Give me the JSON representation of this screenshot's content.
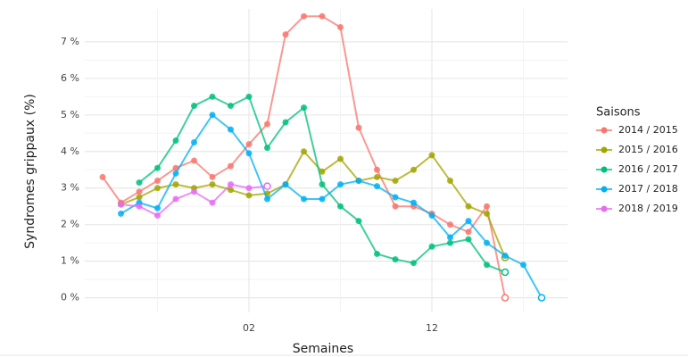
{
  "chart_data": {
    "type": "line",
    "xlabel": "Semaines",
    "ylabel": "Syndromes grippaux (%)",
    "legend_title": "Saisons",
    "categories": [
      null,
      null,
      null,
      null,
      null,
      null,
      null,
      null,
      "02",
      null,
      null,
      null,
      null,
      null,
      null,
      null,
      null,
      null,
      "12",
      null,
      null,
      null,
      null,
      null,
      null
    ],
    "series": [
      {
        "name": "2014 / 2015",
        "color": "#F8766D",
        "values": [
          3.3,
          2.6,
          2.9,
          3.2,
          3.55,
          3.75,
          3.3,
          3.6,
          4.2,
          4.75,
          7.2,
          7.7,
          7.7,
          7.4,
          4.65,
          3.5,
          2.5,
          2.5,
          2.3,
          2.0,
          1.8,
          2.5,
          0,
          null,
          null
        ]
      },
      {
        "name": "2015 / 2016",
        "color": "#A3A500",
        "values": [
          null,
          2.55,
          2.75,
          3.0,
          3.1,
          3.0,
          3.1,
          2.95,
          2.8,
          2.85,
          3.1,
          4.0,
          3.45,
          3.8,
          3.2,
          3.3,
          3.2,
          3.5,
          3.9,
          3.2,
          2.5,
          2.3,
          1.1,
          null,
          null
        ]
      },
      {
        "name": "2016 / 2017",
        "color": "#00BF7D",
        "values": [
          null,
          null,
          3.15,
          3.55,
          4.3,
          5.25,
          5.5,
          5.25,
          5.5,
          4.1,
          4.8,
          5.2,
          3.1,
          2.5,
          2.1,
          1.2,
          1.05,
          0.95,
          1.4,
          1.5,
          1.6,
          0.9,
          0.7,
          null,
          null
        ]
      },
      {
        "name": "2017 / 2018",
        "color": "#00B0F6",
        "values": [
          null,
          2.3,
          2.6,
          2.45,
          3.4,
          4.25,
          5.0,
          4.6,
          3.95,
          2.7,
          3.1,
          2.7,
          2.7,
          3.1,
          3.2,
          3.05,
          2.75,
          2.6,
          2.25,
          1.65,
          2.1,
          1.5,
          1.15,
          0.9,
          0
        ]
      },
      {
        "name": "2018 / 2019",
        "color": "#E76BF3",
        "values": [
          null,
          2.55,
          2.5,
          2.25,
          2.7,
          2.9,
          2.6,
          3.1,
          3.0,
          3.05,
          null,
          null,
          null,
          null,
          null,
          null,
          null,
          null,
          null,
          null,
          null,
          null,
          null,
          null,
          null
        ]
      }
    ],
    "ylim": [
      -0.4,
      7.9
    ],
    "yticks": [
      {
        "value": 0,
        "label": "0 %"
      },
      {
        "value": 1,
        "label": "1 %"
      },
      {
        "value": 2,
        "label": "2 %"
      },
      {
        "value": 3,
        "label": "3 %"
      },
      {
        "value": 4,
        "label": "4 %"
      },
      {
        "value": 5,
        "label": "5 %"
      },
      {
        "value": 6,
        "label": "6 %"
      },
      {
        "value": 7,
        "label": "7 %"
      }
    ],
    "grid": true
  }
}
